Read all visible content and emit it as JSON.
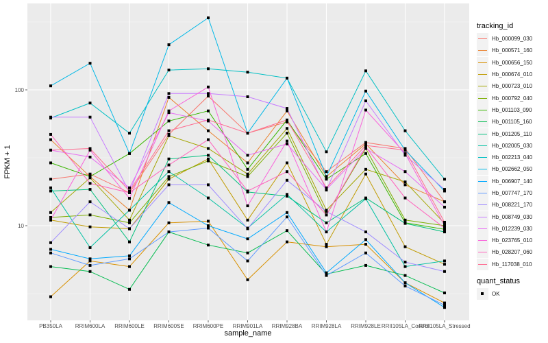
{
  "chart_data": {
    "type": "line",
    "title": "",
    "xlabel": "sample_name",
    "ylabel": "FPKM + 1",
    "yscale": "log10",
    "ylim": [
      2.2,
      420
    ],
    "yticks": [
      10,
      100
    ],
    "ytick_labels": [
      "10",
      "100"
    ],
    "grid": true,
    "legend_position": "right",
    "categories": [
      "PB350LA",
      "RRIM600LA",
      "RRIM600LE",
      "RRIM600SE",
      "RRIM600PE",
      "RRIM901LA",
      "RRIM928BA",
      "RRIM928LA",
      "RRIM928LE",
      "RRII105LA_Control",
      "RRII105LA_Stressed"
    ],
    "legend_title": "tracking_id",
    "series": [
      {
        "name": "Hb_000099_030",
        "color": "#F8766D",
        "values": [
          22,
          24,
          17.5,
          47,
          90,
          48,
          58,
          25,
          41,
          37,
          15
        ]
      },
      {
        "name": "Hb_000571_160",
        "color": "#EA8331",
        "values": [
          43,
          23,
          13,
          88,
          50,
          29,
          70,
          23,
          40,
          20,
          15
        ]
      },
      {
        "name": "Hb_000656_150",
        "color": "#D89000",
        "values": [
          3,
          5.5,
          5,
          10.5,
          10.8,
          4,
          7.6,
          7,
          7.3,
          3.8,
          2.7
        ]
      },
      {
        "name": "Hb_000674_010",
        "color": "#C09B00",
        "values": [
          11,
          9.8,
          9.5,
          22,
          31,
          11,
          29,
          7.3,
          24,
          7,
          5.2
        ]
      },
      {
        "name": "Hb_000723_010",
        "color": "#A3A500",
        "values": [
          12.5,
          22.5,
          11,
          46,
          37,
          24,
          52,
          13,
          26,
          21,
          10.4
        ]
      },
      {
        "name": "Hb_000792_040",
        "color": "#7CAE00",
        "values": [
          11.5,
          12,
          10.5,
          23,
          30,
          23,
          48,
          12,
          37,
          11,
          10
        ]
      },
      {
        "name": "Hb_001103_090",
        "color": "#39B600",
        "values": [
          29,
          23,
          34,
          59,
          70,
          26,
          60,
          22,
          34,
          10.5,
          9.4
        ]
      },
      {
        "name": "Hb_001105_160",
        "color": "#00BB4E",
        "values": [
          5,
          4.6,
          3.4,
          9,
          7.2,
          6.3,
          9.2,
          4.4,
          5.1,
          4.3,
          3.2
        ]
      },
      {
        "name": "Hb_001205_110",
        "color": "#00BF7D",
        "values": [
          18,
          18.5,
          7.6,
          31,
          33,
          17.7,
          16.5,
          10.5,
          16,
          10.4,
          9
        ]
      },
      {
        "name": "Hb_002005_030",
        "color": "#00C1A3",
        "values": [
          19,
          6.9,
          13,
          25,
          16,
          9.6,
          17,
          9,
          15.8,
          5,
          5.5
        ]
      },
      {
        "name": "Hb_002213_040",
        "color": "#00BFC4",
        "values": [
          62,
          80,
          48,
          140,
          143,
          135,
          122,
          35,
          138,
          50,
          22
        ]
      },
      {
        "name": "Hb_002662_050",
        "color": "#00B8E7",
        "values": [
          107,
          157,
          34,
          215,
          339,
          48,
          122,
          23,
          98,
          36,
          18
        ]
      },
      {
        "name": "Hb_006907_140",
        "color": "#00A9FF",
        "values": [
          6.7,
          5.7,
          6,
          14.8,
          10,
          8,
          12.5,
          4.5,
          7.9,
          3.8,
          2.5
        ]
      },
      {
        "name": "Hb_007747_170",
        "color": "#619CFF",
        "values": [
          6.3,
          5.1,
          5.7,
          9,
          9.6,
          5.5,
          11.6,
          4.3,
          6.3,
          3.6,
          2.6
        ]
      },
      {
        "name": "Hb_008221_170",
        "color": "#9F8CFF",
        "values": [
          7.5,
          15,
          9.5,
          20,
          20,
          9.5,
          21.6,
          12.7,
          9,
          5.4,
          4.6
        ]
      },
      {
        "name": "Hb_008749_030",
        "color": "#C77CFF",
        "values": [
          63,
          63,
          17.7,
          94,
          94,
          89,
          73,
          18.3,
          83,
          33,
          18.5
        ]
      },
      {
        "name": "Hb_012239_030",
        "color": "#E76BF3",
        "values": [
          36,
          32,
          19,
          68,
          59,
          33,
          40,
          18.5,
          37,
          25,
          13.7
        ]
      },
      {
        "name": "Hb_023765_010",
        "color": "#FA62DB",
        "values": [
          11,
          36,
          15.9,
          70,
          105,
          14,
          42,
          9,
          71,
          34,
          10
        ]
      },
      {
        "name": "Hb_028207_060",
        "color": "#FF62BC",
        "values": [
          47,
          20.5,
          17.5,
          28,
          43,
          18,
          25,
          12,
          38,
          16,
          9.6
        ]
      },
      {
        "name": "Hb_117038_010",
        "color": "#FF6C91",
        "values": [
          36,
          37,
          18,
          50,
          60,
          48,
          60,
          19,
          39,
          36,
          10.6
        ]
      }
    ],
    "shape_legend_title": "quant_status",
    "shape_legend_items": [
      "OK"
    ]
  }
}
